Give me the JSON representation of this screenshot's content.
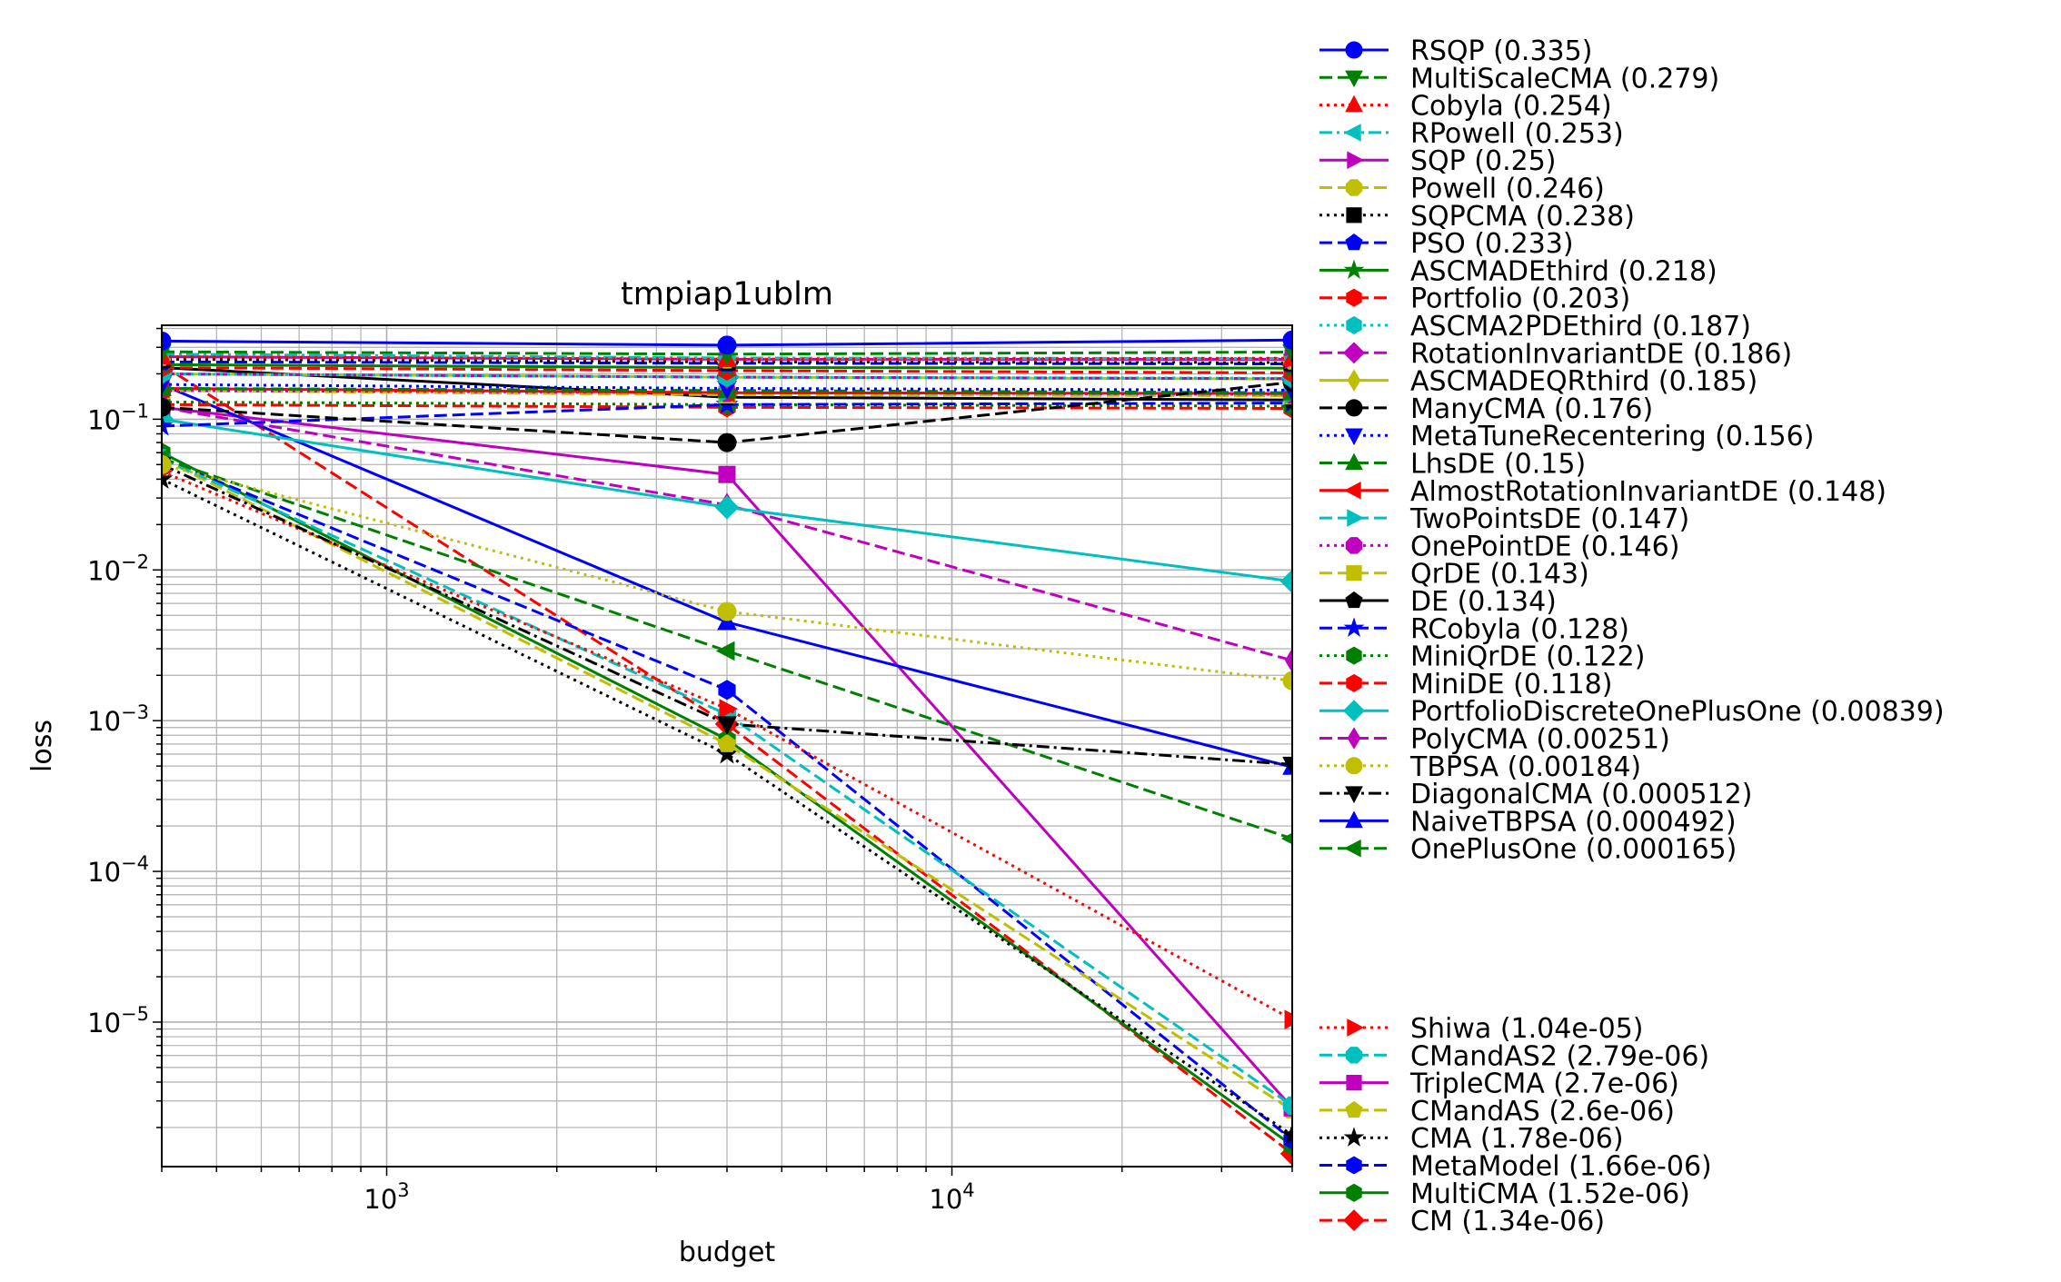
{
  "chart_data": {
    "type": "line",
    "title": "tmpiap1ublm",
    "xlabel": "budget",
    "ylabel": "loss",
    "x_scale": "log",
    "y_scale": "log",
    "xlim": [
      400,
      40000
    ],
    "ylim": [
      1.1e-06,
      0.42
    ],
    "x_ticks": [
      {
        "value": 1000,
        "base": "10",
        "exp": "3"
      },
      {
        "value": 10000,
        "base": "10",
        "exp": "4"
      }
    ],
    "y_ticks": [
      {
        "value": 0.1,
        "base": "10",
        "exp": "−1"
      },
      {
        "value": 0.01,
        "base": "10",
        "exp": "−2"
      },
      {
        "value": 0.001,
        "base": "10",
        "exp": "−3"
      },
      {
        "value": 0.0001,
        "base": "10",
        "exp": "−4"
      },
      {
        "value": 1e-05,
        "base": "10",
        "exp": "−5"
      }
    ],
    "grid": true,
    "legend_placement": "outside-right",
    "x": [
      400,
      4000,
      40000
    ],
    "series": [
      {
        "label": "RSQP (0.335)",
        "color": "#0000ff",
        "dash": "solid",
        "marker": "circle",
        "values": [
          0.33,
          0.31,
          0.335
        ]
      },
      {
        "label": "MultiScaleCMA (0.279)",
        "color": "#008000",
        "dash": "dashed",
        "marker": "triangle-down",
        "values": [
          0.28,
          0.27,
          0.279
        ]
      },
      {
        "label": "Cobyla (0.254)",
        "color": "#ff0000",
        "dash": "dotted",
        "marker": "triangle-up",
        "values": [
          0.26,
          0.25,
          0.254
        ]
      },
      {
        "label": "RPowell (0.253)",
        "color": "#00bfbf",
        "dash": "dashdot",
        "marker": "triangle-left",
        "values": [
          0.27,
          0.255,
          0.253
        ]
      },
      {
        "label": "SQP (0.25)",
        "color": "#bf00bf",
        "dash": "solid",
        "marker": "triangle-right",
        "values": [
          0.26,
          0.25,
          0.25
        ]
      },
      {
        "label": "Powell (0.246)",
        "color": "#bfbf00",
        "dash": "dashed",
        "marker": "octagon",
        "values": [
          0.26,
          0.25,
          0.246
        ]
      },
      {
        "label": "SQPCMA (0.238)",
        "color": "#000000",
        "dash": "dotted",
        "marker": "square",
        "values": [
          0.25,
          0.24,
          0.238
        ]
      },
      {
        "label": "PSO (0.233)",
        "color": "#0000ff",
        "dash": "dashed",
        "marker": "pentagon",
        "values": [
          0.24,
          0.235,
          0.233
        ]
      },
      {
        "label": "ASCMADEthird (0.218)",
        "color": "#008000",
        "dash": "solid",
        "marker": "star",
        "values": [
          0.23,
          0.22,
          0.218
        ]
      },
      {
        "label": "Portfolio (0.203)",
        "color": "#ff0000",
        "dash": "dashed",
        "marker": "hexagon",
        "values": [
          0.22,
          0.21,
          0.203
        ]
      },
      {
        "label": "ASCMA2PDEthird (0.187)",
        "color": "#00bfbf",
        "dash": "dotted",
        "marker": "hexagon",
        "values": [
          0.2,
          0.19,
          0.187
        ]
      },
      {
        "label": "RotationInvariantDE (0.186)",
        "color": "#bf00bf",
        "dash": "dashed",
        "marker": "diamond",
        "values": [
          0.2,
          0.19,
          0.186
        ]
      },
      {
        "label": "ASCMADEQRthird (0.185)",
        "color": "#bfbf00",
        "dash": "solid",
        "marker": "thin-diamond",
        "values": [
          0.2,
          0.19,
          0.185
        ]
      },
      {
        "label": "ManyCMA (0.176)",
        "color": "#000000",
        "dash": "dashed",
        "marker": "circle",
        "values": [
          0.12,
          0.07,
          0.176
        ]
      },
      {
        "label": "MetaTuneRecentering (0.156)",
        "color": "#0000ff",
        "dash": "dotted",
        "marker": "triangle-down",
        "values": [
          0.17,
          0.16,
          0.156
        ]
      },
      {
        "label": "LhsDE (0.15)",
        "color": "#008000",
        "dash": "dashed",
        "marker": "triangle-up",
        "values": [
          0.16,
          0.155,
          0.15
        ]
      },
      {
        "label": "AlmostRotationInvariantDE (0.148)",
        "color": "#ff0000",
        "dash": "solid",
        "marker": "triangle-left",
        "values": [
          0.16,
          0.15,
          0.148
        ]
      },
      {
        "label": "TwoPointsDE (0.147)",
        "color": "#00bfbf",
        "dash": "dashed",
        "marker": "triangle-right",
        "values": [
          0.16,
          0.15,
          0.147
        ]
      },
      {
        "label": "OnePointDE (0.146)",
        "color": "#bf00bf",
        "dash": "dotted",
        "marker": "octagon",
        "values": [
          0.155,
          0.15,
          0.146
        ]
      },
      {
        "label": "QrDE (0.143)",
        "color": "#bfbf00",
        "dash": "dashed",
        "marker": "square",
        "values": [
          0.155,
          0.145,
          0.143
        ]
      },
      {
        "label": "DE (0.134)",
        "color": "#000000",
        "dash": "solid",
        "marker": "pentagon",
        "values": [
          0.22,
          0.14,
          0.134
        ]
      },
      {
        "label": "RCobyla (0.128)",
        "color": "#0000ff",
        "dash": "dashed",
        "marker": "star",
        "values": [
          0.09,
          0.125,
          0.128
        ]
      },
      {
        "label": "MiniQrDE (0.122)",
        "color": "#008000",
        "dash": "dotted",
        "marker": "hexagon",
        "values": [
          0.13,
          0.125,
          0.122
        ]
      },
      {
        "label": "MiniDE (0.118)",
        "color": "#ff0000",
        "dash": "dashed",
        "marker": "hexagon",
        "values": [
          0.125,
          0.12,
          0.118
        ]
      },
      {
        "label": "PortfolioDiscreteOnePlusOne (0.00839)",
        "color": "#00bfbf",
        "dash": "solid",
        "marker": "diamond",
        "values": [
          0.1,
          0.026,
          0.00839
        ]
      },
      {
        "label": "PolyCMA (0.00251)",
        "color": "#bf00bf",
        "dash": "dashed",
        "marker": "thin-diamond",
        "values": [
          0.12,
          0.027,
          0.00251
        ]
      },
      {
        "label": "TBPSA (0.00184)",
        "color": "#bfbf00",
        "dash": "dotted",
        "marker": "circle",
        "values": [
          0.05,
          0.0053,
          0.00184
        ]
      },
      {
        "label": "DiagonalCMA (0.000512)",
        "color": "#000000",
        "dash": "dashdot",
        "marker": "triangle-down",
        "values": [
          0.05,
          0.00095,
          0.000512
        ]
      },
      {
        "label": "NaiveTBPSA (0.000492)",
        "color": "#0000ff",
        "dash": "solid",
        "marker": "triangle-up",
        "values": [
          0.17,
          0.0045,
          0.000492
        ]
      },
      {
        "label": "OnePlusOne (0.000165)",
        "color": "#008000",
        "dash": "dashed",
        "marker": "triangle-left",
        "values": [
          0.055,
          0.0029,
          0.000165
        ]
      },
      {
        "label": "Shiwa (1.04e-05)",
        "color": "#ff0000",
        "dash": "dotted",
        "marker": "triangle-right",
        "values": [
          0.045,
          0.0012,
          1.04e-05
        ]
      },
      {
        "label": "CMandAS2 (2.79e-06)",
        "color": "#00bfbf",
        "dash": "dashed",
        "marker": "octagon",
        "values": [
          0.055,
          0.0011,
          2.79e-06
        ]
      },
      {
        "label": "TripleCMA (2.7e-06)",
        "color": "#bf00bf",
        "dash": "solid",
        "marker": "square",
        "values": [
          0.12,
          0.043,
          2.7e-06
        ]
      },
      {
        "label": "CMandAS (2.6e-06)",
        "color": "#bfbf00",
        "dash": "dashed",
        "marker": "pentagon",
        "values": [
          0.055,
          0.0007,
          2.6e-06
        ]
      },
      {
        "label": "CMA (1.78e-06)",
        "color": "#000000",
        "dash": "dotted",
        "marker": "star",
        "values": [
          0.04,
          0.0006,
          1.78e-06
        ]
      },
      {
        "label": "MetaModel (1.66e-06)",
        "color": "#0000ff",
        "dash": "dashed",
        "marker": "hexagon",
        "values": [
          0.055,
          0.0016,
          1.66e-06
        ]
      },
      {
        "label": "MultiCMA (1.52e-06)",
        "color": "#008000",
        "dash": "solid",
        "marker": "hexagon",
        "values": [
          0.06,
          0.00075,
          1.52e-06
        ]
      },
      {
        "label": "CM (1.34e-06)",
        "color": "#ff0000",
        "dash": "dashed",
        "marker": "diamond",
        "values": [
          0.23,
          0.00095,
          1.34e-06
        ]
      }
    ]
  }
}
